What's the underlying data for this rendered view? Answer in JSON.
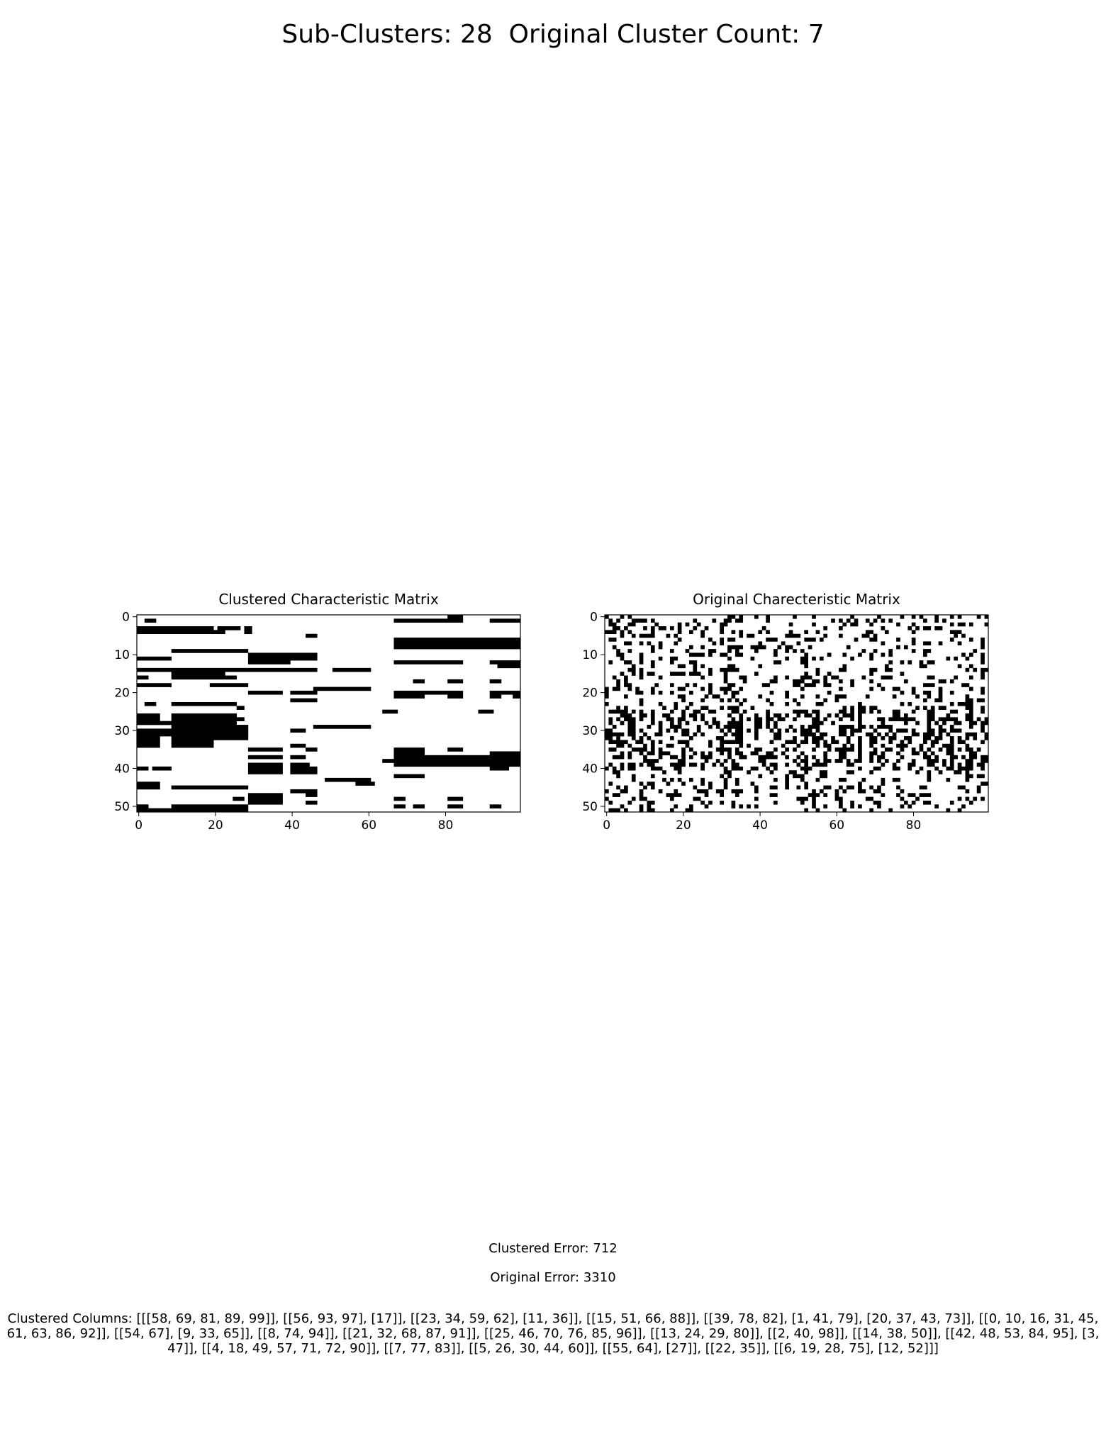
{
  "suptitle": "Sub-Clusters: 28  Original Cluster Count: 7",
  "chart_data": [
    {
      "type": "heatmap",
      "title": "Clustered Characteristic Matrix",
      "rows": 52,
      "cols": 100,
      "colormap": "binary (1 = black, 0 = white)",
      "x_ticks": [
        0,
        20,
        40,
        60,
        80
      ],
      "y_ticks": [
        0,
        10,
        20,
        30,
        40,
        50
      ],
      "filled_segments": [
        [
          1,
          2,
          4
        ],
        [
          3,
          0,
          8
        ],
        [
          3,
          9,
          19
        ],
        [
          3,
          21,
          26
        ],
        [
          3,
          28,
          29
        ],
        [
          4,
          0,
          8
        ],
        [
          4,
          9,
          19
        ],
        [
          4,
          19,
          22
        ],
        [
          4,
          28,
          29
        ],
        [
          1,
          67,
          80
        ],
        [
          1,
          81,
          84
        ],
        [
          1,
          92,
          99
        ],
        [
          0,
          81,
          84
        ],
        [
          5,
          44,
          46
        ],
        [
          6,
          67,
          99
        ],
        [
          7,
          67,
          99
        ],
        [
          8,
          67,
          80
        ],
        [
          8,
          81,
          84
        ],
        [
          8,
          84,
          99
        ],
        [
          9,
          9,
          28
        ],
        [
          10,
          29,
          39
        ],
        [
          10,
          40,
          43
        ],
        [
          10,
          44,
          46
        ],
        [
          11,
          0,
          8
        ],
        [
          11,
          29,
          39
        ],
        [
          11,
          40,
          43
        ],
        [
          11,
          44,
          46
        ],
        [
          12,
          29,
          39
        ],
        [
          12,
          67,
          80
        ],
        [
          12,
          81,
          84
        ],
        [
          12,
          92,
          99
        ],
        [
          13,
          94,
          99
        ],
        [
          14,
          0,
          8
        ],
        [
          14,
          9,
          19
        ],
        [
          14,
          19,
          28
        ],
        [
          14,
          29,
          46
        ],
        [
          14,
          51,
          60
        ],
        [
          15,
          9,
          19
        ],
        [
          15,
          19,
          22
        ],
        [
          16,
          9,
          19
        ],
        [
          16,
          19,
          25
        ],
        [
          16,
          0,
          2
        ],
        [
          17,
          72,
          74
        ],
        [
          17,
          81,
          84
        ],
        [
          17,
          92,
          94
        ],
        [
          18,
          0,
          8
        ],
        [
          18,
          19,
          28
        ],
        [
          19,
          46,
          60
        ],
        [
          20,
          29,
          37
        ],
        [
          20,
          40,
          43
        ],
        [
          20,
          44,
          46
        ],
        [
          20,
          67,
          74
        ],
        [
          20,
          75,
          84
        ],
        [
          20,
          92,
          99
        ],
        [
          21,
          67,
          74
        ],
        [
          21,
          81,
          84
        ],
        [
          21,
          92,
          94
        ],
        [
          21,
          98,
          99
        ],
        [
          22,
          40,
          46
        ],
        [
          23,
          2,
          4
        ],
        [
          23,
          9,
          19
        ],
        [
          23,
          19,
          25
        ],
        [
          24,
          26,
          27
        ],
        [
          25,
          64,
          67
        ],
        [
          25,
          89,
          92
        ],
        [
          26,
          0,
          5
        ],
        [
          26,
          9,
          25
        ],
        [
          27,
          0,
          5
        ],
        [
          27,
          9,
          25
        ],
        [
          27,
          26,
          27
        ],
        [
          28,
          0,
          5
        ],
        [
          28,
          6,
          9
        ],
        [
          28,
          9,
          25
        ],
        [
          29,
          9,
          28
        ],
        [
          29,
          46,
          60
        ],
        [
          30,
          0,
          28
        ],
        [
          30,
          40,
          43
        ],
        [
          31,
          0,
          28
        ],
        [
          32,
          0,
          5
        ],
        [
          32,
          9,
          28
        ],
        [
          33,
          0,
          5
        ],
        [
          33,
          9,
          19
        ],
        [
          34,
          0,
          5
        ],
        [
          34,
          9,
          19
        ],
        [
          34,
          40,
          43
        ],
        [
          35,
          29,
          37
        ],
        [
          35,
          44,
          46
        ],
        [
          35,
          67,
          74
        ],
        [
          35,
          81,
          84
        ],
        [
          36,
          67,
          74
        ],
        [
          36,
          92,
          99
        ],
        [
          37,
          29,
          33
        ],
        [
          37,
          34,
          37
        ],
        [
          37,
          40,
          43
        ],
        [
          37,
          67,
          99
        ],
        [
          38,
          64,
          99
        ],
        [
          39,
          29,
          33
        ],
        [
          39,
          34,
          37
        ],
        [
          39,
          40,
          44
        ],
        [
          39,
          67,
          99
        ],
        [
          40,
          0,
          2
        ],
        [
          40,
          4,
          8
        ],
        [
          40,
          29,
          37
        ],
        [
          40,
          40,
          46
        ],
        [
          40,
          92,
          96
        ],
        [
          41,
          29,
          37
        ],
        [
          41,
          40,
          46
        ],
        [
          42,
          67,
          74
        ],
        [
          43,
          51,
          60
        ],
        [
          43,
          49,
          51
        ],
        [
          44,
          57,
          61
        ],
        [
          44,
          0,
          2
        ],
        [
          44,
          3,
          5
        ],
        [
          45,
          0,
          2
        ],
        [
          45,
          3,
          5
        ],
        [
          45,
          9,
          28
        ],
        [
          45,
          9,
          19
        ],
        [
          46,
          40,
          46
        ],
        [
          47,
          29,
          37
        ],
        [
          47,
          44,
          46
        ],
        [
          48,
          25,
          27
        ],
        [
          48,
          29,
          37
        ],
        [
          48,
          67,
          69
        ],
        [
          48,
          81,
          84
        ],
        [
          49,
          29,
          37
        ],
        [
          49,
          44,
          46
        ],
        [
          50,
          0,
          2
        ],
        [
          50,
          9,
          28
        ],
        [
          50,
          67,
          69
        ],
        [
          50,
          72,
          74
        ],
        [
          50,
          81,
          84
        ],
        [
          50,
          92,
          94
        ],
        [
          51,
          0,
          8
        ],
        [
          51,
          9,
          28
        ]
      ]
    },
    {
      "type": "heatmap",
      "title": "Original Charecteristic Matrix",
      "rows": 52,
      "cols": 100,
      "colormap": "binary (1 = black, 0 = white)",
      "x_ticks": [
        0,
        20,
        40,
        60,
        80
      ],
      "y_ticks": [
        0,
        10,
        20,
        30,
        40,
        50
      ],
      "density": 0.22,
      "dense_row_bands": [
        [
          25,
          33
        ],
        [
          35,
          40
        ]
      ],
      "random_seed": 7
    }
  ],
  "clustered_error_text": "Clustered Error: 712",
  "original_error_text": "Original Error: 3310",
  "clustered_columns_text": "Clustered Columns: [[[58, 69, 81, 89, 99]], [[56, 93, 97], [17]], [[23, 34, 59, 62], [11, 36]], [[15, 51, 66, 88]], [[39, 78, 82], [1, 41, 79], [20, 37, 43, 73]], [[0, 10, 16, 31, 45, 61, 63, 86, 92]], [[54, 67], [9, 33, 65]], [[8, 74, 94]], [[21, 32, 68, 87, 91]], [[25, 46, 70, 76, 85, 96]], [[13, 24, 29, 80]], [[2, 40, 98]], [[14, 38, 50]], [[42, 48, 53, 84, 95], [3, 47]], [[4, 18, 49, 57, 71, 72, 90]], [[7, 77, 83]], [[5, 26, 30, 44, 60]], [[55, 64], [27]], [[22, 35]], [[6, 19, 28, 75], [12, 52]]]"
}
